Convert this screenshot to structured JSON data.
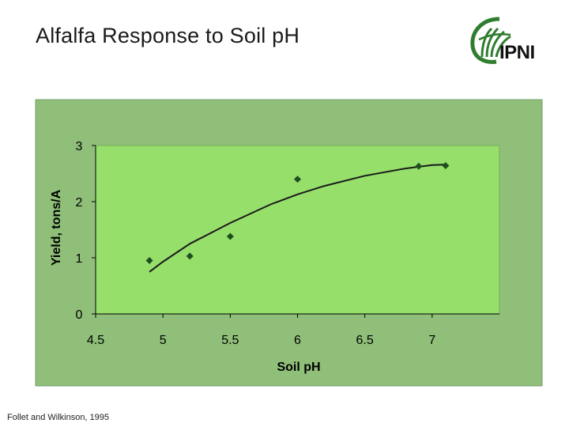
{
  "slide": {
    "title": "Alfalfa Response to Soil pH",
    "source": "Follet and Wilkinson, 1995"
  },
  "logo": {
    "text": "IPNI",
    "icon": "ipni-leaf-logo"
  },
  "colors": {
    "outer_area": "#8fbf79",
    "plot_area": "#96df6b",
    "marker": "#1f4e1f",
    "trend": "#1a1a1a",
    "logo_green": "#2f7d2f"
  },
  "chart_data": {
    "type": "scatter",
    "xlabel": "Soil pH",
    "ylabel": "Yield, tons/A",
    "xlim": [
      4.5,
      7.5
    ],
    "ylim": [
      0,
      3
    ],
    "x_ticks": [
      "4.5",
      "5",
      "5.5",
      "6",
      "6.5",
      "7"
    ],
    "y_ticks": [
      "0",
      "1",
      "2",
      "3"
    ],
    "grid": false,
    "legend": "none",
    "series": [
      {
        "points": [
          {
            "x": 4.9,
            "y": 0.95
          },
          {
            "x": 5.2,
            "y": 1.03
          },
          {
            "x": 5.5,
            "y": 1.38
          },
          {
            "x": 6.0,
            "y": 2.4
          },
          {
            "x": 6.9,
            "y": 2.63
          },
          {
            "x": 7.1,
            "y": 2.64
          }
        ]
      }
    ],
    "trendline": {
      "type": "polynomial",
      "points": [
        {
          "x": 4.9,
          "y": 0.75
        },
        {
          "x": 5.0,
          "y": 0.93
        },
        {
          "x": 5.2,
          "y": 1.25
        },
        {
          "x": 5.5,
          "y": 1.62
        },
        {
          "x": 5.8,
          "y": 1.95
        },
        {
          "x": 6.0,
          "y": 2.13
        },
        {
          "x": 6.2,
          "y": 2.28
        },
        {
          "x": 6.5,
          "y": 2.46
        },
        {
          "x": 6.8,
          "y": 2.59
        },
        {
          "x": 7.0,
          "y": 2.65
        },
        {
          "x": 7.1,
          "y": 2.66
        }
      ]
    }
  }
}
